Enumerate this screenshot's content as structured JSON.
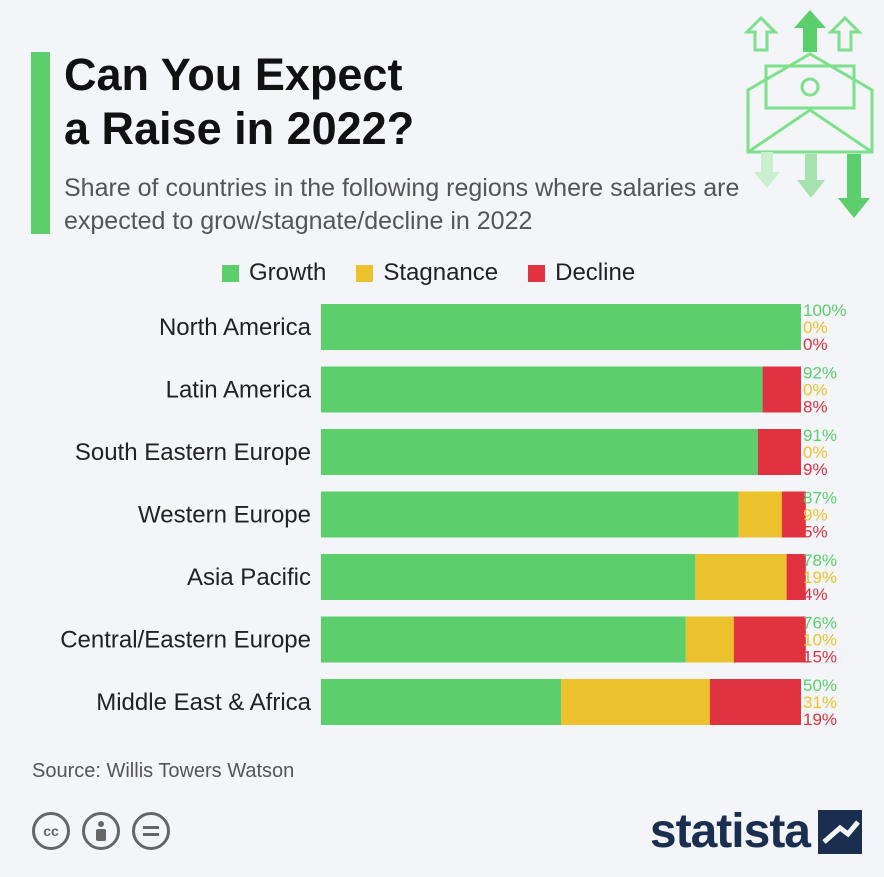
{
  "header": {
    "title": "Can You Expect\na Raise in 2022?",
    "subtitle": "Share of countries in the following regions where salaries are expected to grow/stagnate/decline in 2022"
  },
  "colors": {
    "accent": "#5ccf6c",
    "growth": "#5ccf6c",
    "stagnance": "#ebc22e",
    "decline": "#e0323f"
  },
  "footer": {
    "source": "Source: Willis Towers Watson",
    "logo": "statista"
  },
  "icons": [
    "envelope-money-icon",
    "cc-icon",
    "by-icon",
    "nd-icon",
    "statista-logo-icon"
  ],
  "chart_data": {
    "type": "bar",
    "orientation": "horizontal",
    "stacked": true,
    "title": "Can You Expect a Raise in 2022?",
    "categories": [
      "North America",
      "Latin America",
      "South Eastern Europe",
      "Western Europe",
      "Asia Pacific",
      "Central/Eastern Europe",
      "Middle East & Africa"
    ],
    "series": [
      {
        "name": "Growth",
        "values": [
          100,
          92,
          91,
          87,
          78,
          76,
          50
        ]
      },
      {
        "name": "Stagnance",
        "values": [
          0,
          0,
          0,
          9,
          19,
          10,
          31
        ]
      },
      {
        "name": "Decline",
        "values": [
          0,
          8,
          9,
          5,
          4,
          15,
          19
        ]
      }
    ],
    "value_suffix": "%",
    "xlim": [
      0,
      100
    ],
    "grid": false,
    "legend_position": "top"
  }
}
